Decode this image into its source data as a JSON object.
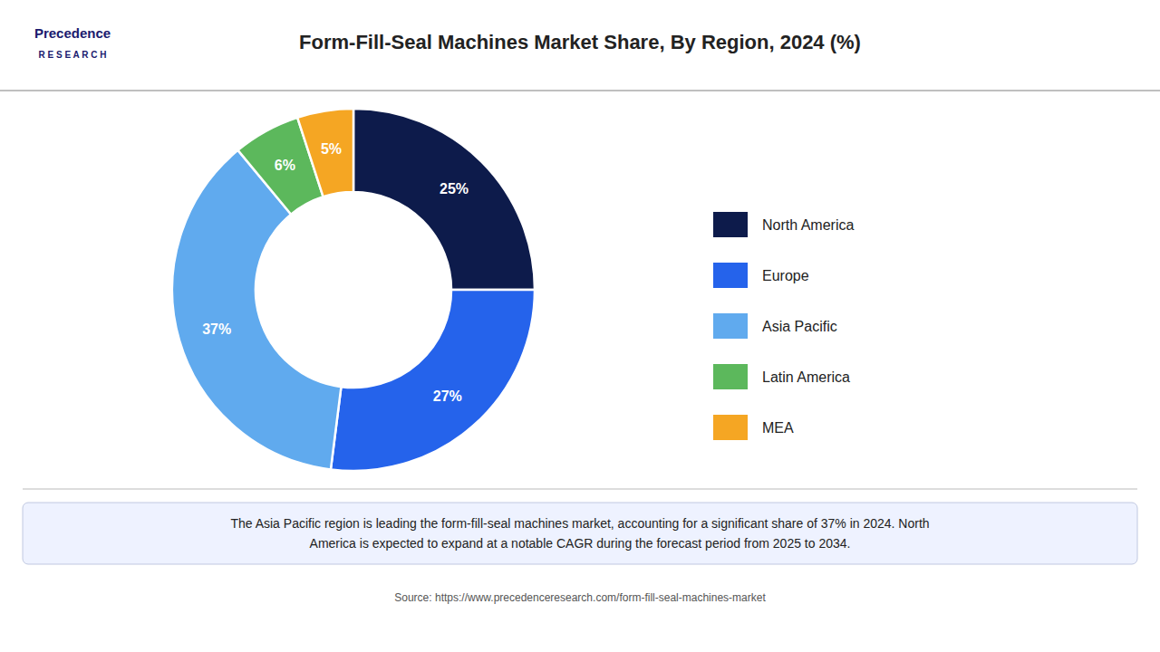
{
  "chart_data": {
    "type": "pie",
    "title": "Form-Fill-Seal Machines Market Share, By Region, 2024 (%)",
    "categories": [
      "North America",
      "Europe",
      "Asia Pacific",
      "Latin America",
      "MEA"
    ],
    "values": [
      25,
      27,
      37,
      6,
      5
    ],
    "value_labels": [
      "25%",
      "27%",
      "37%",
      "6%",
      "5%"
    ],
    "colors": [
      "#0d1b4b",
      "#2563eb",
      "#60aaee",
      "#5cb85c",
      "#f5a623"
    ],
    "data_labels": true,
    "legend": "right",
    "annotations": [
      "Precedence",
      "R E S E A R C H",
      "The Asia Pacific region is leading the form-fill-seal machines market, accounting for a significant share of 37% in 2024. North\nAmerica is expected to expand at a notable CAGR during the forecast period from 2025 to 2034.",
      "Source: https://www.precedenceresearch.com/form-fill-seal-machines-market"
    ]
  }
}
